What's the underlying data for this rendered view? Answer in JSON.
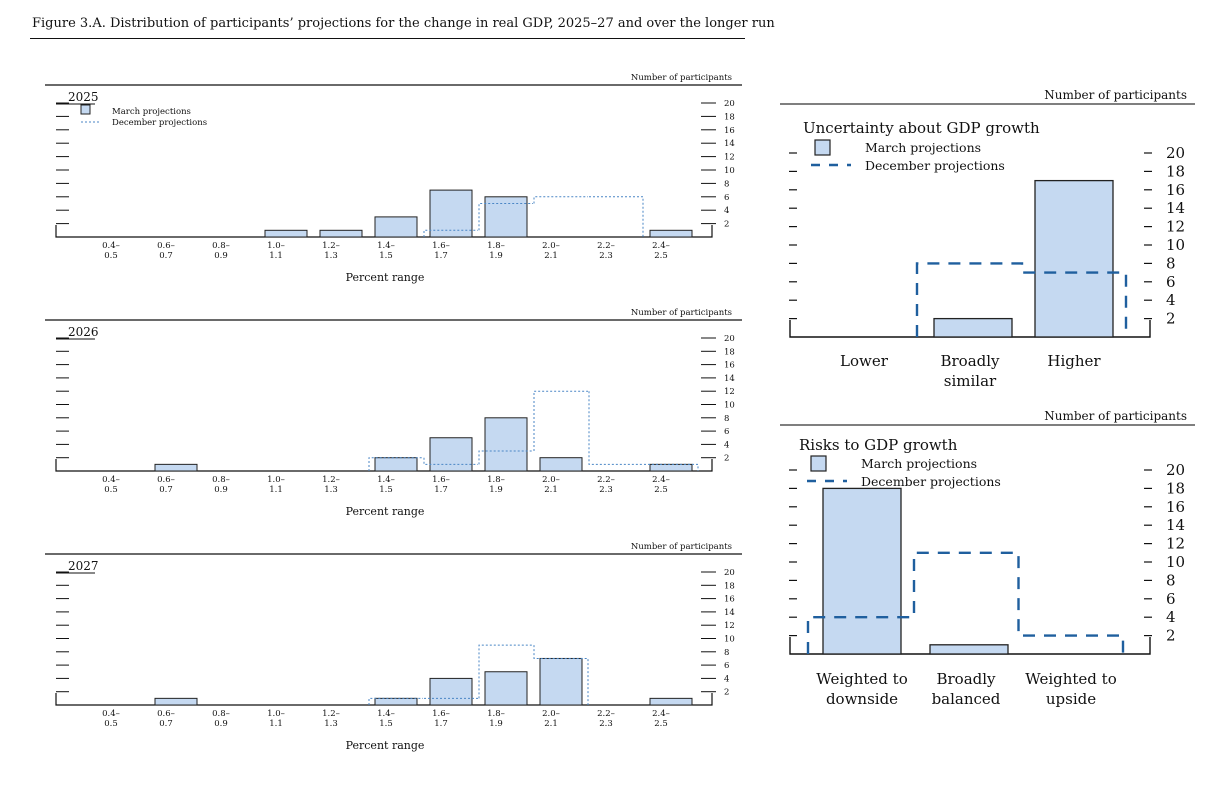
{
  "figure_title": "Figure 3.A. Distribution of participants’ projections for the change in real GDP, 2025–27 and over the longer run",
  "colors": {
    "bar_fill": "#c5d9f1",
    "bar_stroke": "#222222",
    "dotted_line": "#4a86c5",
    "dashed_line": "#1f5f9e",
    "rule": "#111111"
  },
  "chart_data": [
    {
      "type": "bar",
      "title": "2025",
      "ylabel": "Number of participants",
      "xlabel": "Percent range",
      "ylim": [
        0,
        20
      ],
      "yticks": [
        "20",
        "18",
        "16",
        "14",
        "12",
        "10",
        "8",
        "6",
        "4",
        "2"
      ],
      "categories": [
        [
          "0.4–",
          "0.5"
        ],
        [
          "0.6–",
          "0.7"
        ],
        [
          "0.8–",
          "0.9"
        ],
        [
          "1.0–",
          "1.1"
        ],
        [
          "1.2–",
          "1.3"
        ],
        [
          "1.4–",
          "1.5"
        ],
        [
          "1.6–",
          "1.7"
        ],
        [
          "1.8–",
          "1.9"
        ],
        [
          "2.0–",
          "2.1"
        ],
        [
          "2.2–",
          "2.3"
        ],
        [
          "2.4–",
          "2.5"
        ]
      ],
      "legend": [
        "March projections",
        "December projections"
      ],
      "series": [
        {
          "name": "March projections",
          "values": [
            0,
            0,
            0,
            1,
            1,
            3,
            7,
            6,
            0,
            0,
            1
          ]
        },
        {
          "name": "December projections",
          "values": [
            0,
            0,
            0,
            0,
            0,
            0,
            1,
            5,
            6,
            6,
            0
          ]
        }
      ]
    },
    {
      "type": "bar",
      "title": "2026",
      "ylabel": "Number of participants",
      "xlabel": "Percent range",
      "ylim": [
        0,
        20
      ],
      "yticks": [
        "20",
        "18",
        "16",
        "14",
        "12",
        "10",
        "8",
        "6",
        "4",
        "2"
      ],
      "categories": [
        [
          "0.4–",
          "0.5"
        ],
        [
          "0.6–",
          "0.7"
        ],
        [
          "0.8–",
          "0.9"
        ],
        [
          "1.0–",
          "1.1"
        ],
        [
          "1.2–",
          "1.3"
        ],
        [
          "1.4–",
          "1.5"
        ],
        [
          "1.6–",
          "1.7"
        ],
        [
          "1.8–",
          "1.9"
        ],
        [
          "2.0–",
          "2.1"
        ],
        [
          "2.2–",
          "2.3"
        ],
        [
          "2.4–",
          "2.5"
        ]
      ],
      "series": [
        {
          "name": "March projections",
          "values": [
            0,
            1,
            0,
            0,
            0,
            2,
            5,
            8,
            2,
            0,
            1
          ]
        },
        {
          "name": "December projections",
          "values": [
            0,
            0,
            0,
            0,
            0,
            2,
            1,
            3,
            12,
            1,
            1
          ]
        }
      ]
    },
    {
      "type": "bar",
      "title": "2027",
      "ylabel": "Number of participants",
      "xlabel": "Percent range",
      "ylim": [
        0,
        20
      ],
      "yticks": [
        "20",
        "18",
        "16",
        "14",
        "12",
        "10",
        "8",
        "6",
        "4",
        "2"
      ],
      "categories": [
        [
          "0.4–",
          "0.5"
        ],
        [
          "0.6–",
          "0.7"
        ],
        [
          "0.8–",
          "0.9"
        ],
        [
          "1.0–",
          "1.1"
        ],
        [
          "1.2–",
          "1.3"
        ],
        [
          "1.4–",
          "1.5"
        ],
        [
          "1.6–",
          "1.7"
        ],
        [
          "1.8–",
          "1.9"
        ],
        [
          "2.0–",
          "2.1"
        ],
        [
          "2.2–",
          "2.3"
        ],
        [
          "2.4–",
          "2.5"
        ]
      ],
      "series": [
        {
          "name": "March projections",
          "values": [
            0,
            1,
            0,
            0,
            0,
            1,
            4,
            5,
            7,
            0,
            1
          ]
        },
        {
          "name": "December projections",
          "values": [
            0,
            0,
            0,
            0,
            0,
            1,
            1,
            9,
            7,
            0,
            0
          ]
        }
      ]
    },
    {
      "type": "bar",
      "title": "Uncertainty about GDP growth",
      "ylabel": "Number of participants",
      "ylim": [
        0,
        20
      ],
      "yticks": [
        "20",
        "18",
        "16",
        "14",
        "12",
        "10",
        "8",
        "6",
        "4",
        "2"
      ],
      "categories": [
        [
          "Lower"
        ],
        [
          "Broadly",
          "similar"
        ],
        [
          "Higher"
        ]
      ],
      "legend": [
        "March projections",
        "December projections"
      ],
      "series": [
        {
          "name": "March projections",
          "values": [
            0,
            2,
            17
          ]
        },
        {
          "name": "December projections",
          "values": [
            0,
            8,
            7
          ]
        }
      ]
    },
    {
      "type": "bar",
      "title": "Risks to GDP growth",
      "ylabel": "Number of participants",
      "ylim": [
        0,
        20
      ],
      "yticks": [
        "20",
        "18",
        "16",
        "14",
        "12",
        "10",
        "8",
        "6",
        "4",
        "2"
      ],
      "categories": [
        [
          "Weighted to",
          "downside"
        ],
        [
          "Broadly",
          "balanced"
        ],
        [
          "Weighted to",
          "upside"
        ]
      ],
      "legend": [
        "March projections",
        "December projections"
      ],
      "series": [
        {
          "name": "March projections",
          "values": [
            18,
            1,
            0
          ]
        },
        {
          "name": "December projections",
          "values": [
            4,
            11,
            2
          ]
        }
      ]
    }
  ]
}
